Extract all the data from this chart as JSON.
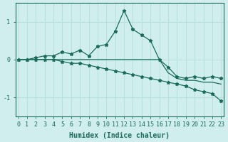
{
  "xlabel": "Humidex (Indice chaleur)",
  "x": [
    0,
    1,
    2,
    3,
    4,
    5,
    6,
    7,
    8,
    9,
    10,
    11,
    12,
    13,
    14,
    15,
    16,
    17,
    18,
    19,
    20,
    21,
    22,
    23
  ],
  "series1": [
    0.0,
    0.0,
    0.05,
    0.1,
    0.1,
    0.2,
    0.15,
    0.25,
    0.1,
    0.35,
    0.4,
    0.75,
    1.3,
    0.8,
    0.65,
    0.5,
    0.0,
    -0.2,
    -0.45,
    -0.5,
    -0.45,
    -0.5,
    -0.45,
    -0.5
  ],
  "series2": [
    0.0,
    0.0,
    0.0,
    0.0,
    0.0,
    0.0,
    0.0,
    0.0,
    0.0,
    0.0,
    0.0,
    0.0,
    0.0,
    0.0,
    0.0,
    0.0,
    0.0,
    -0.35,
    -0.5,
    -0.55,
    -0.55,
    -0.6,
    -0.6,
    -0.65
  ],
  "series3": [
    0.0,
    0.0,
    0.0,
    0.0,
    0.0,
    -0.05,
    -0.1,
    -0.1,
    -0.15,
    -0.2,
    -0.25,
    -0.3,
    -0.35,
    -0.4,
    -0.45,
    -0.5,
    -0.55,
    -0.6,
    -0.65,
    -0.7,
    -0.8,
    -0.85,
    -0.9,
    -1.1
  ],
  "line_color": "#1a6b5a",
  "bg_color": "#d0eeee",
  "grid_color": "#b8dede",
  "marker": "*",
  "ylim": [
    -1.5,
    1.5
  ],
  "yticks": [
    -1,
    0,
    1
  ],
  "tick_fontsize": 6,
  "label_fontsize": 7
}
